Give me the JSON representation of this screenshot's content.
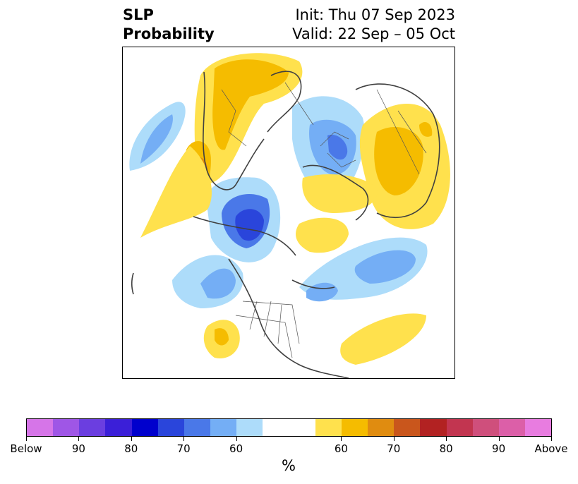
{
  "title": {
    "left_line1": "SLP",
    "left_line2": "Probability",
    "right_line1": "Init: Thu 07 Sep 2023",
    "right_line2": "Valid: 22 Sep – 05 Oct"
  },
  "colorbar": {
    "unit": "%",
    "colors": [
      "#d675e8",
      "#9f56e6",
      "#6b3ee0",
      "#3b1fd8",
      "#0000cd",
      "#2a45db",
      "#4a78e8",
      "#74aef5",
      "#addcfa",
      "#ffffff",
      "#ffffff",
      "#ffe14d",
      "#f5bc00",
      "#e08c10",
      "#c9561c",
      "#b22222",
      "#c23550",
      "#cf4f7c",
      "#dc5fa8",
      "#e87ce0"
    ],
    "tick_labels": [
      "Below",
      "90",
      "80",
      "70",
      "60",
      "60",
      "70",
      "80",
      "90",
      "Above"
    ],
    "tick_positions_fraction": [
      0.0,
      0.1,
      0.2,
      0.3,
      0.4,
      0.6,
      0.7,
      0.8,
      0.9,
      1.0
    ]
  }
}
